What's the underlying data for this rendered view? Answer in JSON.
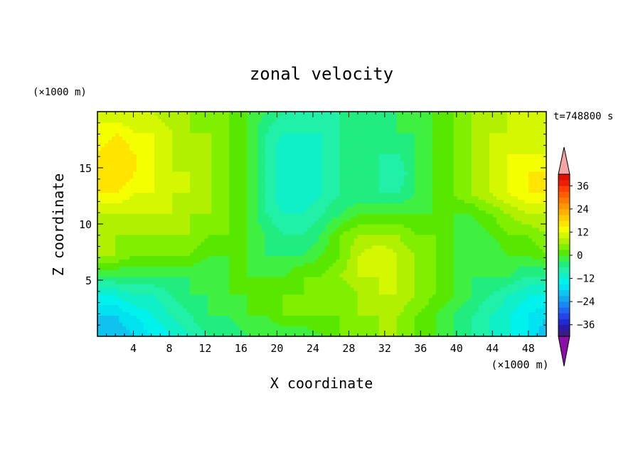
{
  "chart_data": {
    "type": "heatmap",
    "title": "zonal velocity",
    "xlabel": "X coordinate",
    "ylabel": "Z coordinate",
    "x_unit": "(×1000 m)",
    "y_unit": "(×1000 m)",
    "time_label": "t=748800 s",
    "xlim": [
      0,
      50
    ],
    "ylim": [
      0,
      20
    ],
    "x_ticks": [
      4,
      8,
      12,
      16,
      20,
      24,
      28,
      32,
      36,
      40,
      44,
      48
    ],
    "y_ticks": [
      5,
      10,
      15
    ],
    "colorbar": {
      "levels": [
        -42,
        -39,
        -36,
        -33,
        -30,
        -27,
        -24,
        -21,
        -18,
        -15,
        -12,
        -9,
        -6,
        -3,
        0,
        3,
        6,
        9,
        12,
        15,
        18,
        21,
        24,
        27,
        30,
        33,
        36,
        39,
        42
      ],
      "colors": [
        "#3a1c84",
        "#2a1aa8",
        "#1f2ad0",
        "#2244e8",
        "#1e66f0",
        "#1a88f2",
        "#14a6f0",
        "#10c2ee",
        "#00e2f0",
        "#00f2ec",
        "#10f0c8",
        "#20f0a8",
        "#20ec80",
        "#40f040",
        "#58e800",
        "#80f000",
        "#b0f000",
        "#d4f800",
        "#f4ff00",
        "#ffe400",
        "#ffcc00",
        "#ffb000",
        "#ff9600",
        "#ff7a00",
        "#ff5e00",
        "#ff3e00",
        "#ee1e00",
        "#dd1000"
      ],
      "under_color": "#8b10a8",
      "over_color": "#f4a4a4",
      "tick_labels": [
        36,
        24,
        12,
        0,
        -12,
        -24,
        -36
      ]
    },
    "grid_z": [
      [
        -21,
        -21,
        -18,
        -15,
        -12,
        -9,
        -6,
        -6,
        -3,
        -3,
        -3,
        -3,
        0,
        3,
        3,
        6,
        6,
        3,
        0,
        -3,
        -6,
        -9,
        -12,
        -15,
        -21
      ],
      [
        -18,
        -18,
        -15,
        -12,
        -9,
        -6,
        -3,
        -3,
        0,
        0,
        3,
        3,
        3,
        3,
        6,
        6,
        6,
        3,
        0,
        -3,
        -6,
        -9,
        -12,
        -15,
        -18
      ],
      [
        -12,
        -12,
        -9,
        -9,
        -6,
        -3,
        -3,
        0,
        0,
        0,
        3,
        3,
        3,
        3,
        6,
        9,
        9,
        6,
        3,
        0,
        -3,
        -6,
        -9,
        -12,
        -12
      ],
      [
        -3,
        -3,
        -3,
        -3,
        -3,
        -3,
        -3,
        0,
        0,
        0,
        0,
        3,
        3,
        6,
        9,
        9,
        9,
        6,
        3,
        0,
        -3,
        -3,
        -3,
        -6,
        -6
      ],
      [
        6,
        6,
        3,
        3,
        3,
        3,
        0,
        0,
        0,
        -3,
        -3,
        -3,
        0,
        3,
        9,
        12,
        9,
        6,
        3,
        0,
        -3,
        -3,
        0,
        0,
        3
      ],
      [
        6,
        6,
        6,
        6,
        6,
        6,
        3,
        3,
        0,
        -3,
        -6,
        -6,
        -3,
        3,
        6,
        6,
        6,
        3,
        3,
        0,
        -3,
        0,
        3,
        3,
        6
      ],
      [
        9,
        9,
        9,
        9,
        9,
        6,
        6,
        3,
        0,
        -6,
        -9,
        -9,
        -6,
        -3,
        0,
        0,
        0,
        0,
        0,
        0,
        0,
        3,
        6,
        9,
        9
      ],
      [
        15,
        15,
        12,
        12,
        9,
        9,
        6,
        3,
        0,
        -6,
        -12,
        -12,
        -9,
        -6,
        -6,
        -6,
        -6,
        -3,
        0,
        3,
        6,
        9,
        12,
        15,
        15
      ],
      [
        15,
        18,
        15,
        12,
        9,
        9,
        6,
        3,
        0,
        -6,
        -12,
        -12,
        -9,
        -6,
        -6,
        -6,
        -9,
        -3,
        0,
        3,
        6,
        9,
        12,
        15,
        15
      ],
      [
        15,
        18,
        15,
        12,
        9,
        6,
        6,
        3,
        0,
        -6,
        -12,
        -12,
        -9,
        -6,
        -6,
        -6,
        -6,
        -3,
        0,
        3,
        6,
        9,
        12,
        12,
        12
      ],
      [
        12,
        15,
        12,
        12,
        9,
        6,
        6,
        3,
        0,
        -6,
        -9,
        -9,
        -9,
        -6,
        -6,
        -6,
        -3,
        -3,
        0,
        3,
        6,
        9,
        9,
        9,
        9
      ],
      [
        12,
        9,
        9,
        9,
        6,
        6,
        3,
        3,
        0,
        -3,
        -6,
        -6,
        -6,
        -6,
        -6,
        -3,
        -3,
        -3,
        0,
        3,
        6,
        6,
        9,
        9,
        9
      ]
    ]
  }
}
